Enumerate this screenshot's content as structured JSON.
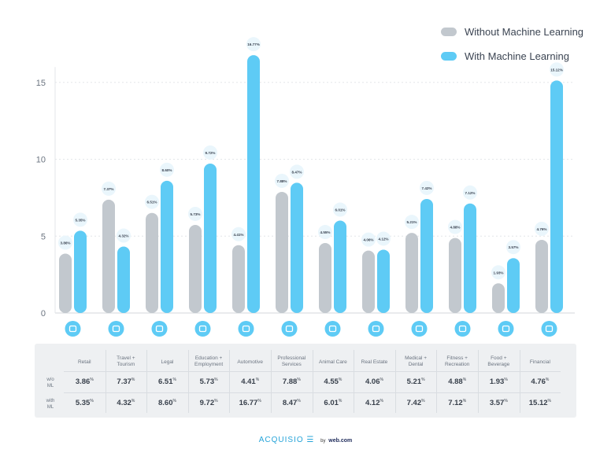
{
  "chart_data": {
    "type": "bar",
    "categories": [
      "Retail",
      "Travel + Tourism",
      "Legal",
      "Education + Employment",
      "Automotive",
      "Professional Services",
      "Animal Care",
      "Real Estate",
      "Medical + Dental",
      "Fitness + Recreation",
      "Food + Beverage",
      "Financial"
    ],
    "series": [
      {
        "name": "Without Machine Learning",
        "color": "#c2c8ce",
        "values": [
          3.86,
          7.37,
          6.51,
          5.73,
          4.41,
          7.88,
          4.55,
          4.06,
          5.21,
          4.88,
          1.93,
          4.76
        ]
      },
      {
        "name": "With Machine Learning",
        "color": "#5ecbf5",
        "values": [
          5.35,
          4.32,
          8.6,
          9.72,
          16.77,
          8.47,
          6.01,
          4.12,
          7.42,
          7.12,
          3.57,
          15.12
        ]
      }
    ],
    "yticks": [
      0,
      5,
      10,
      15
    ],
    "ylim": [
      0,
      17.5
    ],
    "grid": true,
    "legend_position": "top-right",
    "icons": [
      "shopping-bag-icon",
      "palm-tree-icon",
      "people-icon",
      "graduation-cap-icon",
      "car-icon",
      "briefcase-icon",
      "pet-carrier-icon",
      "house-icon",
      "medical-icon",
      "heart-icon",
      "food-icon",
      "chart-icon"
    ]
  },
  "table": {
    "headers": [
      "Retail",
      "Travel +\nTourism",
      "Legal",
      "Education +\nEmployment",
      "Automotive",
      "Professional\nServices",
      "Animal Care",
      "Real Estate",
      "Medical +\nDental",
      "Fitness +\nRecreation",
      "Food +\nBeverage",
      "Financial"
    ],
    "row_labels": [
      "w/o\nML",
      "with\nML"
    ],
    "rows": [
      [
        "3.86",
        "7.37",
        "6.51",
        "5.73",
        "4.41",
        "7.88",
        "4.55",
        "4.06",
        "5.21",
        "4.88",
        "1.93",
        "4.76"
      ],
      [
        "5.35",
        "4.32",
        "8.60",
        "9.72",
        "16.77",
        "8.47",
        "6.01",
        "4.12",
        "7.42",
        "7.12",
        "3.57",
        "15.12"
      ]
    ],
    "unit": "%"
  },
  "footer": {
    "brand": "ACQUISIO",
    "by": "by",
    "partner": "web.com"
  }
}
